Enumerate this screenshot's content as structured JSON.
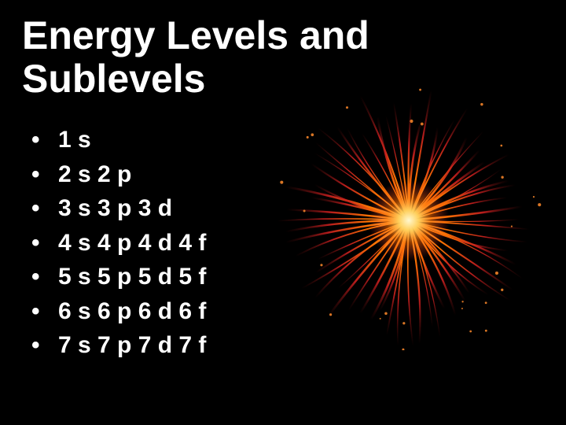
{
  "title_line1": "Energy Levels and",
  "title_line2": "Sublevels",
  "items": [
    "1 s",
    "2 s  2 p",
    "3 s  3 p  3 d",
    "4 s  4 p  4 d  4 f",
    "5 s  5 p  5 d  5 f",
    "6 s  6 p  6 d  6 f",
    "7 s  7 p  7 d  7 f"
  ],
  "colors": {
    "background": "#000000",
    "text": "#ffffff",
    "firework_core": "#ffef9a",
    "firework_mid": "#ff7a00",
    "firework_outer": "#e62e2e",
    "firework_dark": "#6b0e0e"
  }
}
